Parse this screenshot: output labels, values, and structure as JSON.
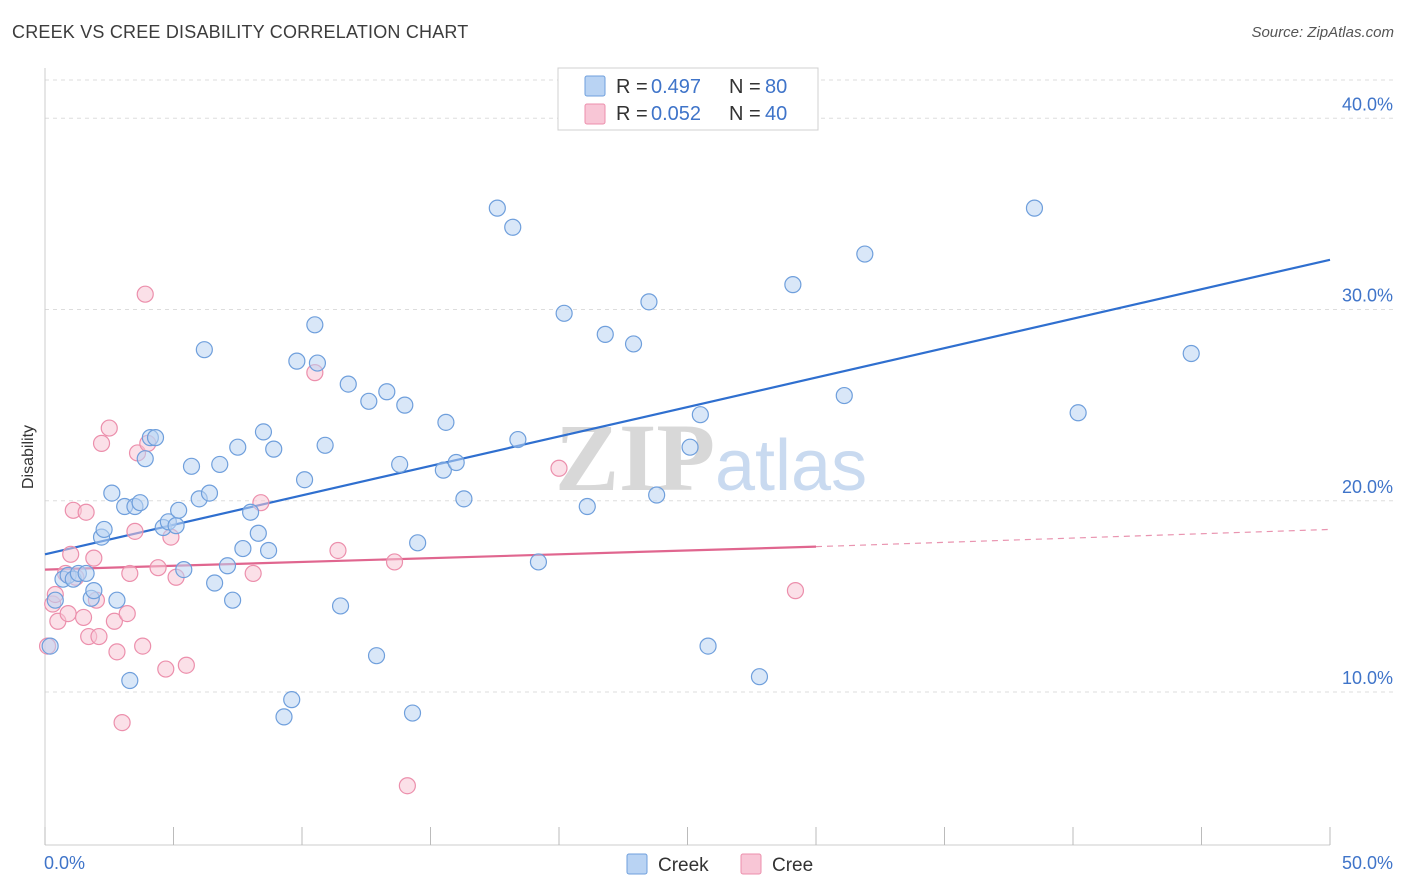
{
  "header": {
    "title": "CREEK VS CREE DISABILITY CORRELATION CHART",
    "source": "Source: ZipAtlas.com"
  },
  "watermark": {
    "part1": "ZIP",
    "part2": "atlas"
  },
  "colors": {
    "creek_fill": "#b9d3f3",
    "creek_stroke": "#6f9fdc",
    "creek_line": "#2f6fcf",
    "cree_fill": "#f8c6d6",
    "cree_stroke": "#ec8fac",
    "cree_line": "#e0668f",
    "grid": "#dddddd",
    "axis_text": "#3f74c9"
  },
  "legend": {
    "rows": [
      {
        "r_label": "R =",
        "r_value": "0.497",
        "n_label": "N =",
        "n_value": "80"
      },
      {
        "r_label": "R =",
        "r_value": "0.052",
        "n_label": "N =",
        "n_value": "40"
      }
    ]
  },
  "chart_data": {
    "type": "scatter",
    "title": "CREEK VS CREE DISABILITY CORRELATION CHART",
    "xlabel": "",
    "ylabel": "Disability",
    "xlim": [
      0,
      50
    ],
    "ylim": [
      2,
      42
    ],
    "x_tick_labels": [
      "0.0%",
      "50.0%"
    ],
    "y_ticks": [
      10,
      20,
      30,
      40
    ],
    "y_tick_labels": [
      "10.0%",
      "20.0%",
      "30.0%",
      "40.0%"
    ],
    "grid": true,
    "legend_placement": "top-center and bottom",
    "series": [
      {
        "name": "Creek",
        "r": 0.497,
        "n": 80,
        "trend": {
          "x": [
            0,
            50
          ],
          "y": [
            17.2,
            32.6
          ],
          "style": "solid"
        },
        "points": [
          [
            0.2,
            12.4
          ],
          [
            0.4,
            14.8
          ],
          [
            0.7,
            15.9
          ],
          [
            0.9,
            16.1
          ],
          [
            1.1,
            15.9
          ],
          [
            1.3,
            16.2
          ],
          [
            1.6,
            16.2
          ],
          [
            1.8,
            14.9
          ],
          [
            1.9,
            15.3
          ],
          [
            2.2,
            18.1
          ],
          [
            2.3,
            18.5
          ],
          [
            2.6,
            20.4
          ],
          [
            2.8,
            14.8
          ],
          [
            3.1,
            19.7
          ],
          [
            3.3,
            10.6
          ],
          [
            3.5,
            19.7
          ],
          [
            3.7,
            19.9
          ],
          [
            3.9,
            22.2
          ],
          [
            4.1,
            23.3
          ],
          [
            4.3,
            23.3
          ],
          [
            4.6,
            18.6
          ],
          [
            4.8,
            18.9
          ],
          [
            5.1,
            18.7
          ],
          [
            5.2,
            19.5
          ],
          [
            5.4,
            16.4
          ],
          [
            5.7,
            21.8
          ],
          [
            6.0,
            20.1
          ],
          [
            6.2,
            27.9
          ],
          [
            6.4,
            20.4
          ],
          [
            6.6,
            15.7
          ],
          [
            6.8,
            21.9
          ],
          [
            7.1,
            16.6
          ],
          [
            7.3,
            14.8
          ],
          [
            7.5,
            22.8
          ],
          [
            7.7,
            17.5
          ],
          [
            8.0,
            19.4
          ],
          [
            8.3,
            18.3
          ],
          [
            8.5,
            23.6
          ],
          [
            8.7,
            17.4
          ],
          [
            8.9,
            22.7
          ],
          [
            9.3,
            8.7
          ],
          [
            9.6,
            9.6
          ],
          [
            9.8,
            27.3
          ],
          [
            10.1,
            21.1
          ],
          [
            10.5,
            29.2
          ],
          [
            10.6,
            27.2
          ],
          [
            10.9,
            22.9
          ],
          [
            11.5,
            14.5
          ],
          [
            11.8,
            26.1
          ],
          [
            12.6,
            25.2
          ],
          [
            12.9,
            11.9
          ],
          [
            13.3,
            25.7
          ],
          [
            13.8,
            21.9
          ],
          [
            14.0,
            25.0
          ],
          [
            14.3,
            8.9
          ],
          [
            14.5,
            17.8
          ],
          [
            15.5,
            21.6
          ],
          [
            15.6,
            24.1
          ],
          [
            16.0,
            22.0
          ],
          [
            16.3,
            20.1
          ],
          [
            17.6,
            35.3
          ],
          [
            18.2,
            34.3
          ],
          [
            18.4,
            23.2
          ],
          [
            19.2,
            16.8
          ],
          [
            20.2,
            29.8
          ],
          [
            21.1,
            19.7
          ],
          [
            21.8,
            28.7
          ],
          [
            22.9,
            28.2
          ],
          [
            23.5,
            30.4
          ],
          [
            23.8,
            20.3
          ],
          [
            25.1,
            22.8
          ],
          [
            25.5,
            24.5
          ],
          [
            25.8,
            12.4
          ],
          [
            27.8,
            10.8
          ],
          [
            29.1,
            31.3
          ],
          [
            31.1,
            25.5
          ],
          [
            31.9,
            32.9
          ],
          [
            38.5,
            35.3
          ],
          [
            40.2,
            24.6
          ],
          [
            44.6,
            27.7
          ]
        ]
      },
      {
        "name": "Cree",
        "r": 0.052,
        "n": 40,
        "trend": {
          "x": [
            0,
            30
          ],
          "y": [
            16.4,
            17.6
          ],
          "style": "solid",
          "extension": {
            "x": [
              30,
              50
            ],
            "y": [
              17.6,
              18.5
            ],
            "style": "dashed"
          }
        },
        "points": [
          [
            0.1,
            12.4
          ],
          [
            0.3,
            14.6
          ],
          [
            0.5,
            13.7
          ],
          [
            0.8,
            16.2
          ],
          [
            0.9,
            14.1
          ],
          [
            1.0,
            17.2
          ],
          [
            1.1,
            19.5
          ],
          [
            1.2,
            16.0
          ],
          [
            1.5,
            13.9
          ],
          [
            1.6,
            19.4
          ],
          [
            1.7,
            12.9
          ],
          [
            1.9,
            17.0
          ],
          [
            2.1,
            12.9
          ],
          [
            2.2,
            23.0
          ],
          [
            2.5,
            23.8
          ],
          [
            2.7,
            13.7
          ],
          [
            2.8,
            12.1
          ],
          [
            3.0,
            8.4
          ],
          [
            3.2,
            14.1
          ],
          [
            3.3,
            16.2
          ],
          [
            3.5,
            18.4
          ],
          [
            3.6,
            22.5
          ],
          [
            3.8,
            12.4
          ],
          [
            3.9,
            30.8
          ],
          [
            4.0,
            23.0
          ],
          [
            4.4,
            16.5
          ],
          [
            4.7,
            11.2
          ],
          [
            4.9,
            18.1
          ],
          [
            5.1,
            16.0
          ],
          [
            5.5,
            11.4
          ],
          [
            8.1,
            16.2
          ],
          [
            8.4,
            19.9
          ],
          [
            10.5,
            26.7
          ],
          [
            11.4,
            17.4
          ],
          [
            13.6,
            16.8
          ],
          [
            14.1,
            5.1
          ],
          [
            20.0,
            21.7
          ],
          [
            29.2,
            15.3
          ],
          [
            0.4,
            15.1
          ],
          [
            2.0,
            14.8
          ]
        ]
      }
    ]
  }
}
